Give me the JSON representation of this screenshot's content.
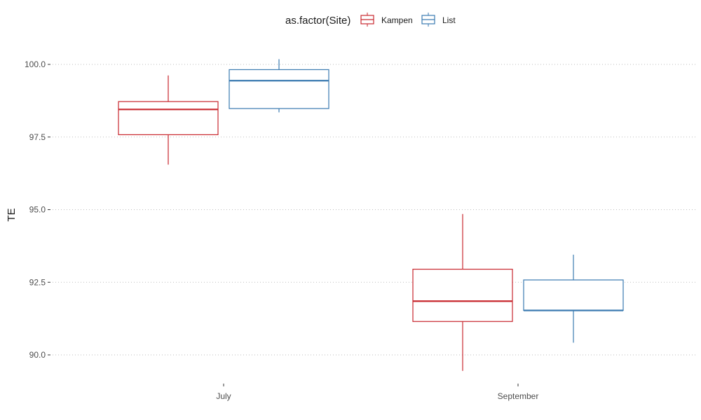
{
  "chart_data": {
    "type": "boxplot",
    "title": "",
    "xlabel": "",
    "ylabel": "TE",
    "ylim": [
      89.3,
      101.0
    ],
    "yticks": [
      90.0,
      92.5,
      95.0,
      97.5,
      100.0
    ],
    "ytick_labels": [
      "90.0",
      "92.5",
      "95.0",
      "97.5",
      "100.0"
    ],
    "categories": [
      "July",
      "September"
    ],
    "grid": "horizontal dotted",
    "legend": {
      "title": "as.factor(Site)",
      "position": "top"
    },
    "series": [
      {
        "name": "Kampen",
        "color": "#c8272e",
        "boxes": [
          {
            "category": "July",
            "whisker_low": 96.55,
            "q1": 97.58,
            "median": 98.45,
            "q3": 98.72,
            "whisker_high": 99.62
          },
          {
            "category": "September",
            "whisker_low": 89.45,
            "q1": 91.15,
            "median": 91.85,
            "q3": 92.95,
            "whisker_high": 94.85
          }
        ]
      },
      {
        "name": "List",
        "color": "#3a7ab0",
        "boxes": [
          {
            "category": "July",
            "whisker_low": 98.35,
            "q1": 98.48,
            "median": 99.44,
            "q3": 99.82,
            "whisker_high": 100.18
          },
          {
            "category": "September",
            "whisker_low": 90.42,
            "q1": 91.53,
            "median": 91.53,
            "q3": 92.58,
            "whisker_high": 93.45
          }
        ]
      }
    ]
  }
}
